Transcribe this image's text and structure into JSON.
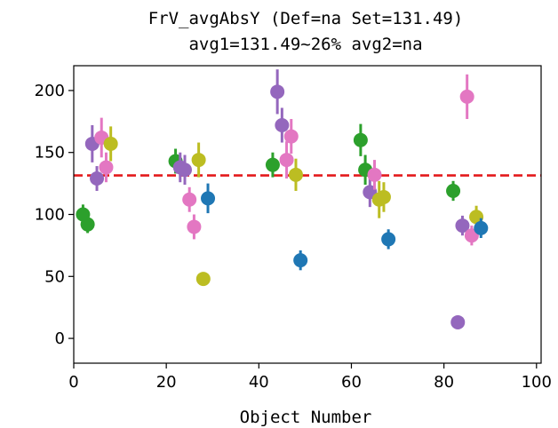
{
  "chart_data": {
    "type": "scatter",
    "title": [
      "FrV_avgAbsY (Def=na Set=131.49)",
      "avg1=131.49~26% avg2=na"
    ],
    "xlabel": "Object Number",
    "ylabel": "",
    "xlim": [
      0,
      101
    ],
    "ylim": [
      -20,
      220
    ],
    "xticks": [
      0,
      20,
      40,
      60,
      80,
      100
    ],
    "yticks": [
      0,
      50,
      100,
      150,
      200
    ],
    "reference_line": {
      "y": 131.49,
      "color": "#e41a1c",
      "style": "dashed"
    },
    "grid": false,
    "legend": "none",
    "points": [
      {
        "x": 2,
        "y": 100,
        "err": 8,
        "color": "#2ca02c"
      },
      {
        "x": 3,
        "y": 92,
        "err": 7,
        "color": "#2ca02c"
      },
      {
        "x": 4,
        "y": 157,
        "err": 15,
        "color": "#9467bd"
      },
      {
        "x": 5,
        "y": 129,
        "err": 10,
        "color": "#9467bd"
      },
      {
        "x": 6,
        "y": 162,
        "err": 16,
        "color": "#e377c2"
      },
      {
        "x": 7,
        "y": 138,
        "err": 12,
        "color": "#e377c2"
      },
      {
        "x": 8,
        "y": 157,
        "err": 14,
        "color": "#bcbd22"
      },
      {
        "x": 22,
        "y": 143,
        "err": 10,
        "color": "#2ca02c"
      },
      {
        "x": 23,
        "y": 138,
        "err": 12,
        "color": "#9467bd"
      },
      {
        "x": 24,
        "y": 136,
        "err": 12,
        "color": "#9467bd"
      },
      {
        "x": 25,
        "y": 112,
        "err": 10,
        "color": "#e377c2"
      },
      {
        "x": 26,
        "y": 90,
        "err": 10,
        "color": "#e377c2"
      },
      {
        "x": 27,
        "y": 144,
        "err": 14,
        "color": "#bcbd22"
      },
      {
        "x": 28,
        "y": 48,
        "err": 0,
        "color": "#bcbd22"
      },
      {
        "x": 29,
        "y": 113,
        "err": 12,
        "color": "#1f77b4"
      },
      {
        "x": 43,
        "y": 140,
        "err": 10,
        "color": "#2ca02c"
      },
      {
        "x": 44,
        "y": 199,
        "err": 18,
        "color": "#9467bd"
      },
      {
        "x": 45,
        "y": 172,
        "err": 14,
        "color": "#9467bd"
      },
      {
        "x": 46,
        "y": 144,
        "err": 15,
        "color": "#e377c2"
      },
      {
        "x": 47,
        "y": 163,
        "err": 14,
        "color": "#e377c2"
      },
      {
        "x": 48,
        "y": 132,
        "err": 13,
        "color": "#bcbd22"
      },
      {
        "x": 49,
        "y": 63,
        "err": 8,
        "color": "#1f77b4"
      },
      {
        "x": 62,
        "y": 160,
        "err": 13,
        "color": "#2ca02c"
      },
      {
        "x": 63,
        "y": 136,
        "err": 12,
        "color": "#2ca02c"
      },
      {
        "x": 64,
        "y": 118,
        "err": 12,
        "color": "#9467bd"
      },
      {
        "x": 65,
        "y": 132,
        "err": 12,
        "color": "#e377c2"
      },
      {
        "x": 66,
        "y": 112,
        "err": 15,
        "color": "#bcbd22"
      },
      {
        "x": 67,
        "y": 114,
        "err": 12,
        "color": "#bcbd22"
      },
      {
        "x": 68,
        "y": 80,
        "err": 8,
        "color": "#1f77b4"
      },
      {
        "x": 82,
        "y": 119,
        "err": 8,
        "color": "#2ca02c"
      },
      {
        "x": 83,
        "y": 13,
        "err": 0,
        "color": "#9467bd"
      },
      {
        "x": 84,
        "y": 91,
        "err": 8,
        "color": "#9467bd"
      },
      {
        "x": 85,
        "y": 195,
        "err": 18,
        "color": "#e377c2"
      },
      {
        "x": 86,
        "y": 83,
        "err": 8,
        "color": "#e377c2"
      },
      {
        "x": 87,
        "y": 98,
        "err": 9,
        "color": "#bcbd22"
      },
      {
        "x": 88,
        "y": 89,
        "err": 8,
        "color": "#1f77b4"
      }
    ]
  }
}
